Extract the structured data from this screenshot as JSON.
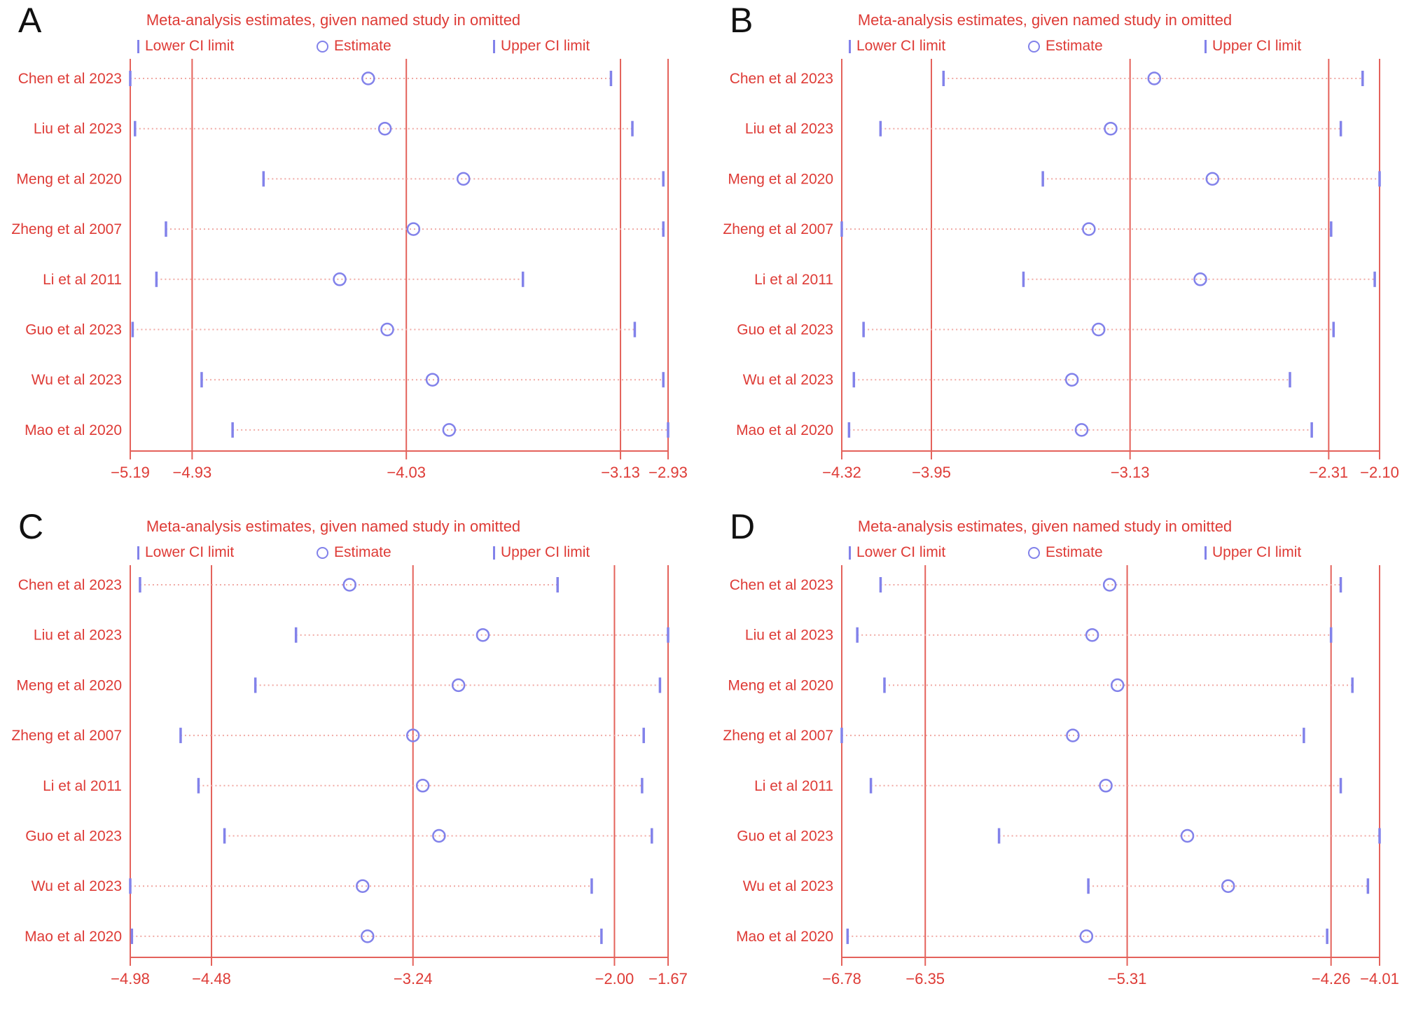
{
  "title": "Meta-analysis estimates, given named study in omitted",
  "legend": {
    "lower": "Lower CI limit",
    "estimate": "Estimate",
    "upper": "Upper CI limit"
  },
  "studies": [
    "Chen et al 2023",
    "Liu et al 2023",
    "Meng et al 2020",
    "Zheng et al 2007",
    "Li et al 2011",
    "Guo et al 2023",
    "Wu et al 2023",
    "Mao et al 2020"
  ],
  "panels": [
    {
      "letter": "A"
    },
    {
      "letter": "B"
    },
    {
      "letter": "C"
    },
    {
      "letter": "D"
    }
  ],
  "colors": {
    "text_red": "#de3b36",
    "line_red": "#e4625b",
    "dotted_ci": "#f0a9a4",
    "marker_purple": "#8282ea",
    "letter_black": "#111111"
  },
  "chart_data": [
    {
      "type": "scatter",
      "panel": "A",
      "title": "Meta-analysis estimates, given named study in omitted",
      "legend": [
        "Lower CI limit",
        "Estimate",
        "Upper CI limit"
      ],
      "legend_position": "top",
      "grid": false,
      "categories": [
        "Chen et al 2023",
        "Liu et al 2023",
        "Meng et al 2020",
        "Zheng et al 2007",
        "Li et al 2011",
        "Guo et al 2023",
        "Wu et al 2023",
        "Mao et al 2020"
      ],
      "series": [
        {
          "name": "Lower CI limit",
          "values": [
            -5.19,
            -5.17,
            -4.63,
            -5.04,
            -5.08,
            -5.18,
            -4.89,
            -4.76
          ]
        },
        {
          "name": "Estimate",
          "values": [
            -4.19,
            -4.12,
            -3.79,
            -4.0,
            -4.31,
            -4.11,
            -3.92,
            -3.85
          ]
        },
        {
          "name": "Upper CI limit",
          "values": [
            -3.17,
            -3.08,
            -2.95,
            -2.95,
            -3.54,
            -3.07,
            -2.95,
            -2.93
          ]
        }
      ],
      "reference_lines": {
        "lower": -4.93,
        "estimate": -4.03,
        "upper": -3.13
      },
      "x_ticks": [
        -5.19,
        -4.93,
        -4.03,
        -3.13,
        -2.93
      ],
      "xlim": [
        -5.19,
        -2.93
      ]
    },
    {
      "type": "scatter",
      "panel": "B",
      "title": "Meta-analysis estimates, given named study in omitted",
      "legend": [
        "Lower CI limit",
        "Estimate",
        "Upper CI limit"
      ],
      "legend_position": "top",
      "grid": false,
      "categories": [
        "Chen et al 2023",
        "Liu et al 2023",
        "Meng et al 2020",
        "Zheng et al 2007",
        "Li et al 2011",
        "Guo et al 2023",
        "Wu et al 2023",
        "Mao et al 2020"
      ],
      "series": [
        {
          "name": "Lower CI limit",
          "values": [
            -3.9,
            -4.16,
            -3.49,
            -4.32,
            -3.57,
            -4.23,
            -4.27,
            -4.29
          ]
        },
        {
          "name": "Estimate",
          "values": [
            -3.03,
            -3.21,
            -2.79,
            -3.3,
            -2.84,
            -3.26,
            -3.37,
            -3.33
          ]
        },
        {
          "name": "Upper CI limit",
          "values": [
            -2.17,
            -2.26,
            -2.1,
            -2.3,
            -2.12,
            -2.29,
            -2.47,
            -2.38
          ]
        }
      ],
      "reference_lines": {
        "lower": -3.95,
        "estimate": -3.13,
        "upper": -2.31
      },
      "x_ticks": [
        -4.32,
        -3.95,
        -3.13,
        -2.31,
        -2.1
      ],
      "xlim": [
        -4.32,
        -2.1
      ]
    },
    {
      "type": "scatter",
      "panel": "C",
      "title": "Meta-analysis estimates, given named study in omitted",
      "legend": [
        "Lower CI limit",
        "Estimate",
        "Upper CI limit"
      ],
      "legend_position": "top",
      "grid": false,
      "categories": [
        "Chen et al 2023",
        "Liu et al 2023",
        "Meng et al 2020",
        "Zheng et al 2007",
        "Li et al 2011",
        "Guo et al 2023",
        "Wu et al 2023",
        "Mao et al 2020"
      ],
      "series": [
        {
          "name": "Lower CI limit",
          "values": [
            -4.92,
            -3.96,
            -4.21,
            -4.67,
            -4.56,
            -4.4,
            -4.98,
            -4.97
          ]
        },
        {
          "name": "Estimate",
          "values": [
            -3.63,
            -2.81,
            -2.96,
            -3.24,
            -3.18,
            -3.08,
            -3.55,
            -3.52
          ]
        },
        {
          "name": "Upper CI limit",
          "values": [
            -2.35,
            -1.67,
            -1.72,
            -1.82,
            -1.83,
            -1.77,
            -2.14,
            -2.08
          ]
        }
      ],
      "reference_lines": {
        "lower": -4.48,
        "estimate": -3.24,
        "upper": -2.0
      },
      "x_ticks": [
        -4.98,
        -4.48,
        -3.24,
        -2.0,
        -1.67
      ],
      "xlim": [
        -4.98,
        -1.67
      ]
    },
    {
      "type": "scatter",
      "panel": "D",
      "title": "Meta-analysis estimates, given named study in omitted",
      "legend": [
        "Lower CI limit",
        "Estimate",
        "Upper CI limit"
      ],
      "legend_position": "top",
      "grid": false,
      "categories": [
        "Chen et al 2023",
        "Liu et al 2023",
        "Meng et al 2020",
        "Zheng et al 2007",
        "Li et al 2011",
        "Guo et al 2023",
        "Wu et al 2023",
        "Mao et al 2020"
      ],
      "series": [
        {
          "name": "Lower CI limit",
          "values": [
            -6.58,
            -6.7,
            -6.56,
            -6.78,
            -6.63,
            -5.97,
            -5.51,
            -6.75
          ]
        },
        {
          "name": "Estimate",
          "values": [
            -5.4,
            -5.49,
            -5.36,
            -5.59,
            -5.42,
            -5.0,
            -4.79,
            -5.52
          ]
        },
        {
          "name": "Upper CI limit",
          "values": [
            -4.21,
            -4.26,
            -4.15,
            -4.4,
            -4.21,
            -4.01,
            -4.07,
            -4.28
          ]
        }
      ],
      "reference_lines": {
        "lower": -6.35,
        "estimate": -5.31,
        "upper": -4.26
      },
      "x_ticks": [
        -6.78,
        -6.35,
        -5.31,
        -4.26,
        -4.01
      ],
      "xlim": [
        -6.78,
        -4.01
      ]
    }
  ]
}
